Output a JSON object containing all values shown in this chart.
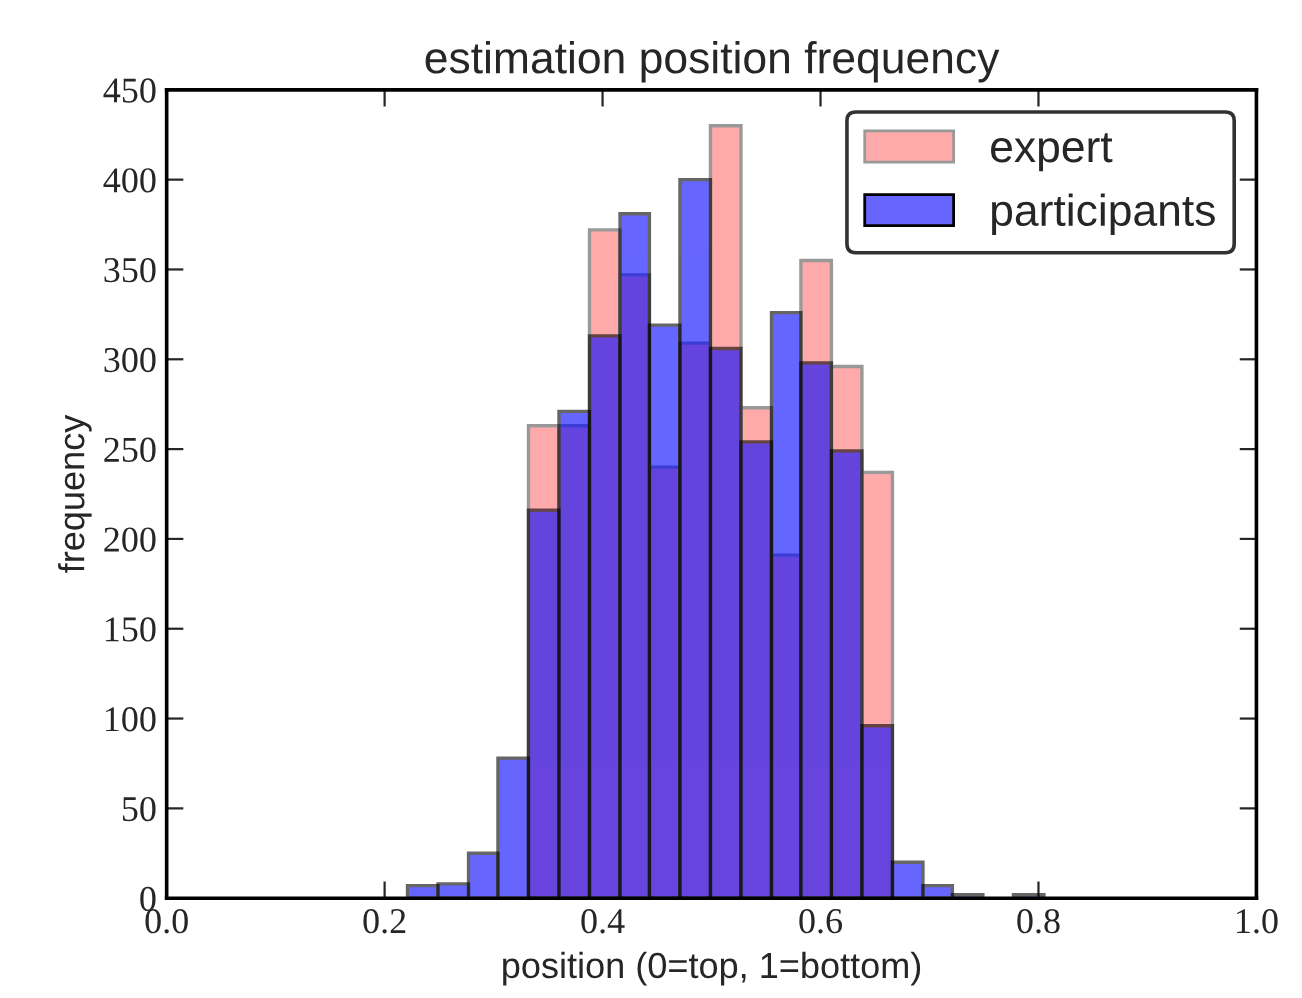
{
  "chart_data": {
    "type": "histogram",
    "title": "estimation position frequency",
    "xlabel": "position (0=top, 1=bottom)",
    "ylabel": "frequency",
    "bins": [
      0.221,
      0.249,
      0.277,
      0.304,
      0.332,
      0.36,
      0.388,
      0.416,
      0.443,
      0.471,
      0.499,
      0.527,
      0.555,
      0.582,
      0.61,
      0.638,
      0.666,
      0.694,
      0.721,
      0.749,
      0.777,
      0.805
    ],
    "series": [
      {
        "name": "expert",
        "color": "#ffaaaa",
        "values": [
          0,
          0,
          0,
          0,
          263,
          263,
          372,
          347,
          240,
          309,
          430,
          273,
          191,
          355,
          296,
          237,
          0,
          0,
          0,
          0,
          0
        ]
      },
      {
        "name": "participants",
        "color": "#6666ff",
        "values": [
          7,
          8,
          25,
          78,
          216,
          271,
          313,
          381,
          319,
          400,
          306,
          254,
          326,
          298,
          249,
          96,
          20,
          7,
          2,
          0,
          2
        ]
      }
    ],
    "xlim": [
      0.0,
      1.0
    ],
    "xticks": [
      {
        "value": 0.0,
        "label": "0.0"
      },
      {
        "value": 0.2,
        "label": "0.2"
      },
      {
        "value": 0.4,
        "label": "0.4"
      },
      {
        "value": 0.6,
        "label": "0.6"
      },
      {
        "value": 0.8,
        "label": "0.8"
      },
      {
        "value": 1.0,
        "label": "1.0"
      }
    ],
    "ylim": [
      0,
      450
    ],
    "yticks": [
      0,
      50,
      100,
      150,
      200,
      250,
      300,
      350,
      400,
      450
    ],
    "legend": "top right",
    "grid": false
  }
}
